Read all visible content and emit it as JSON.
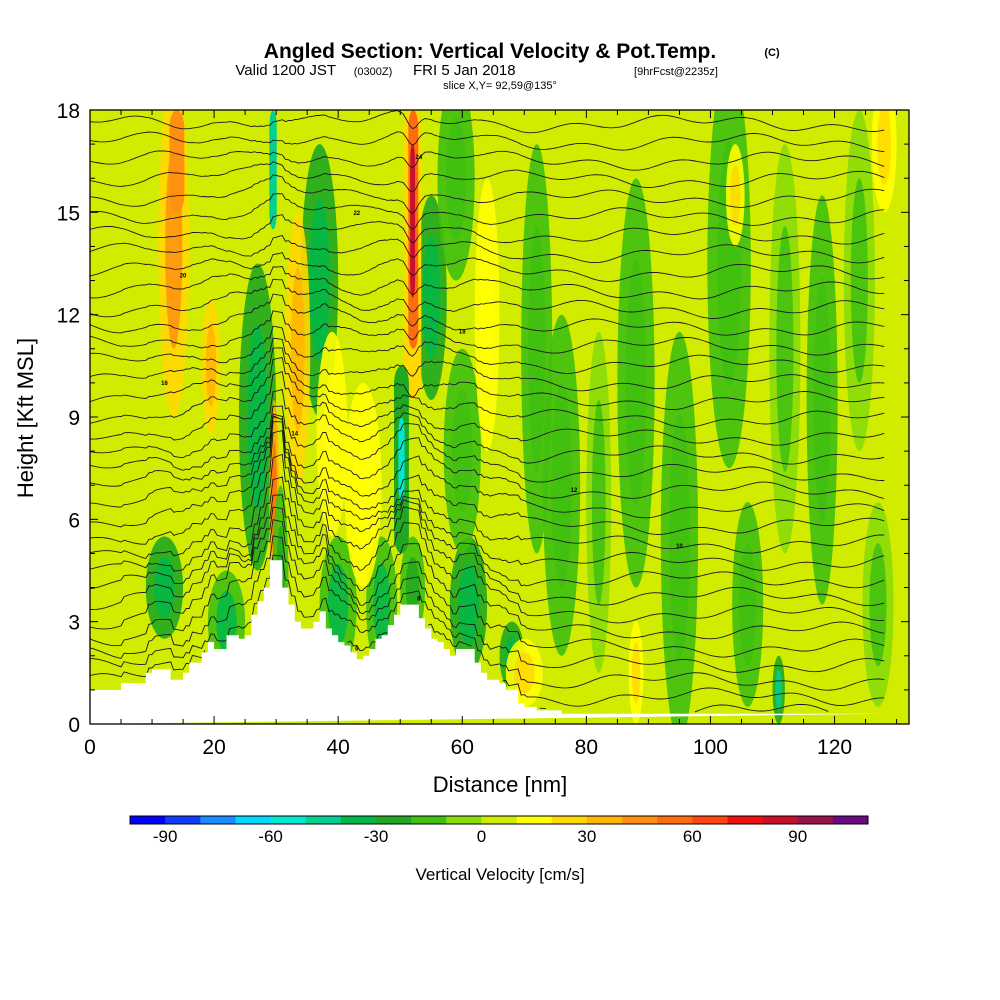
{
  "header": {
    "title": "Angled Section: Vertical Velocity & Pot.Temp.",
    "title_suffix": "(C)",
    "valid_prefix": "Valid 1200 JST",
    "valid_zulu": "(0300Z)",
    "valid_date": "FRI 5 Jan 2018",
    "forecast": "[9hrFcst@2235z]",
    "slice": "slice X,Y= 92,59@135°"
  },
  "chart_data": {
    "type": "heatmap",
    "title": "Angled Section: Vertical Velocity & Pot.Temp.",
    "xlabel": "Distance [nm]",
    "ylabel": "Height [Kft MSL]",
    "xlim": [
      0,
      132
    ],
    "ylim": [
      0,
      18
    ],
    "x_ticks": [
      0,
      20,
      40,
      60,
      80,
      100,
      120
    ],
    "y_ticks": [
      0,
      3,
      6,
      9,
      12,
      15,
      18
    ],
    "terrain": {
      "name": "terrain profile",
      "x": [
        0,
        4,
        4,
        5,
        5,
        6,
        6,
        7,
        7,
        8,
        8,
        9,
        9,
        10,
        10,
        13,
        13,
        15,
        15,
        16,
        16,
        18,
        18,
        19,
        19,
        20,
        20,
        22,
        22,
        24,
        24,
        25,
        25,
        26,
        26,
        27,
        27,
        28,
        28,
        29,
        29,
        31,
        31,
        32,
        32,
        33,
        33,
        34,
        34,
        35,
        35,
        36,
        36,
        37,
        37,
        38,
        38,
        39,
        39,
        40,
        40,
        41,
        41,
        42,
        42,
        43,
        43,
        44,
        44,
        45,
        45,
        46,
        46,
        47,
        47,
        48,
        48,
        49,
        49,
        50,
        50,
        53,
        53,
        54,
        54,
        55,
        55,
        56,
        56,
        57,
        57,
        58,
        58,
        59,
        59,
        60,
        60,
        62,
        62,
        63,
        63,
        64,
        64,
        65,
        65,
        66,
        66,
        67,
        67,
        68,
        68,
        69,
        69,
        70,
        70,
        72,
        72,
        76,
        76,
        80,
        80,
        84,
        84,
        88,
        88,
        92,
        92,
        96,
        96,
        100,
        100,
        104,
        104,
        108,
        108,
        112,
        112,
        116,
        116,
        120,
        120,
        124,
        124,
        128,
        128,
        132
      ],
      "height": [
        1.0,
        1.0,
        1.0,
        1.0,
        1.2,
        1.2,
        1.2,
        1.2,
        1.2,
        1.2,
        1.2,
        1.2,
        1.5,
        1.5,
        1.6,
        1.6,
        1.3,
        1.3,
        1.5,
        1.5,
        1.8,
        1.8,
        2.1,
        2.1,
        2.4,
        2.4,
        2.2,
        2.2,
        2.6,
        2.6,
        2.5,
        2.5,
        2.6,
        2.6,
        3.2,
        3.2,
        3.6,
        3.6,
        4.0,
        4.0,
        4.8,
        4.8,
        4.0,
        4.0,
        3.5,
        3.5,
        3.0,
        3.0,
        2.8,
        2.8,
        2.8,
        2.8,
        3.0,
        3.0,
        3.3,
        3.3,
        2.8,
        2.8,
        2.6,
        2.6,
        2.4,
        2.4,
        2.3,
        2.3,
        2.1,
        2.1,
        1.9,
        1.9,
        2.0,
        2.0,
        2.2,
        2.2,
        2.5,
        2.5,
        2.6,
        2.6,
        2.9,
        2.9,
        3.2,
        3.2,
        3.5,
        3.5,
        3.1,
        3.1,
        2.8,
        2.8,
        2.5,
        2.5,
        2.4,
        2.4,
        2.2,
        2.2,
        2.0,
        2.0,
        2.2,
        2.2,
        2.2,
        2.2,
        1.8,
        1.8,
        1.5,
        1.5,
        1.3,
        1.3,
        1.3,
        1.3,
        1.2,
        1.2,
        1.0,
        1.0,
        1.0,
        1.0,
        0.6,
        0.6,
        0.5,
        0.5,
        0.4,
        0.4,
        0.3,
        0.3,
        0.3,
        0.3,
        0.3,
        0.3,
        0.3,
        0.3,
        0.3,
        0.3,
        0.3,
        0.3,
        0.3,
        0.3,
        0.3,
        0.3,
        0.3,
        0.3,
        0.3,
        0.3,
        0.3,
        0.3,
        0.3,
        0.3,
        0.3,
        0.3
      ]
    },
    "velocity_features": [
      {
        "x": 13.5,
        "z": 14.0,
        "dx": 2.5,
        "dz": 5,
        "w": 25
      },
      {
        "x": 12,
        "z": 4.0,
        "dx": 3.0,
        "dz": 1.5,
        "w": -22
      },
      {
        "x": 19.5,
        "z": 10.5,
        "dx": 1.5,
        "dz": 2,
        "w": 20
      },
      {
        "x": 22,
        "z": 3.0,
        "dx": 3.0,
        "dz": 1.5,
        "w": -20
      },
      {
        "x": 27,
        "z": 9.0,
        "dx": 3.0,
        "dz": 4.5,
        "w": -25
      },
      {
        "x": 29.7,
        "z": 6.5,
        "dx": 0.8,
        "dz": 3,
        "w": 35
      },
      {
        "x": 30.7,
        "z": 4.0,
        "dx": 1.3,
        "dz": 3,
        "w": -15
      },
      {
        "x": 37,
        "z": 13.0,
        "dx": 3.0,
        "dz": 4,
        "w": -25
      },
      {
        "x": 33.5,
        "z": 11.0,
        "dx": 2.0,
        "dz": 4,
        "w": 20
      },
      {
        "x": 39,
        "z": 8.5,
        "dx": 2.5,
        "dz": 3,
        "w": 12
      },
      {
        "x": 40,
        "z": 3.5,
        "dx": 3.0,
        "dz": 2,
        "w": -20
      },
      {
        "x": 47,
        "z": 3.5,
        "dx": 2.5,
        "dz": 2,
        "w": -20
      },
      {
        "x": 44,
        "z": 7.0,
        "dx": 3.0,
        "dz": 3,
        "w": 12
      },
      {
        "x": 55,
        "z": 12.5,
        "dx": 2.5,
        "dz": 3,
        "w": -25
      },
      {
        "x": 52,
        "z": 4.0,
        "dx": 2.0,
        "dz": 1.5,
        "w": -15
      },
      {
        "x": 61,
        "z": 3.5,
        "dx": 3.0,
        "dz": 2,
        "w": -25
      },
      {
        "x": 59,
        "z": 16.0,
        "dx": 3.0,
        "dz": 3,
        "w": -12
      },
      {
        "x": 60,
        "z": 8.0,
        "dx": 3.0,
        "dz": 3,
        "w": -12
      },
      {
        "x": 64,
        "z": 12.0,
        "dx": 2.0,
        "dz": 4,
        "w": 10
      },
      {
        "x": 68,
        "z": 2.0,
        "dx": 2.0,
        "dz": 1,
        "w": -25
      },
      {
        "x": 72,
        "z": 11.0,
        "dx": 2.5,
        "dz": 6,
        "w": -12
      },
      {
        "x": 76,
        "z": 7.0,
        "dx": 3.0,
        "dz": 5,
        "w": -12
      },
      {
        "x": 82,
        "z": 6.5,
        "dx": 2.0,
        "dz": 5,
        "w": -10
      },
      {
        "x": 88,
        "z": 10.0,
        "dx": 3.0,
        "dz": 6,
        "w": -12
      },
      {
        "x": 95,
        "z": 5.5,
        "dx": 3.0,
        "dz": 6,
        "w": -12
      },
      {
        "x": 103,
        "z": 13.5,
        "dx": 3.5,
        "dz": 6,
        "w": -12
      },
      {
        "x": 106,
        "z": 3.5,
        "dx": 2.5,
        "dz": 3,
        "w": -12
      },
      {
        "x": 112,
        "z": 11.0,
        "dx": 2.5,
        "dz": 6,
        "w": -10
      },
      {
        "x": 118,
        "z": 9.5,
        "dx": 2.5,
        "dz": 6,
        "w": -12
      },
      {
        "x": 124,
        "z": 13.0,
        "dx": 2.5,
        "dz": 5,
        "w": -10
      },
      {
        "x": 127,
        "z": 3.5,
        "dx": 2.5,
        "dz": 3,
        "w": -10
      },
      {
        "x": 70,
        "z": 1.5,
        "dx": 3.0,
        "dz": 1,
        "w": 15
      },
      {
        "x": 88,
        "z": 1.5,
        "dx": 1.2,
        "dz": 1.5,
        "w": 18
      },
      {
        "x": 104,
        "z": 15.5,
        "dx": 1.5,
        "dz": 1.5,
        "w": 18
      },
      {
        "x": 128,
        "z": 17.0,
        "dx": 2.0,
        "dz": 2,
        "w": 15
      },
      {
        "x": 111,
        "z": 1.0,
        "dx": 1.0,
        "dz": 1,
        "w": -30
      }
    ],
    "isentropes": {
      "name": "Pot.Temp. (C)",
      "n": 34,
      "base": 0.35,
      "top": 17.6,
      "labeled_values": [
        "4",
        "6",
        "8",
        "10",
        "12",
        "14",
        "16",
        "18",
        "20",
        "22",
        "24",
        "26",
        "28",
        "30"
      ]
    },
    "colorbar": {
      "label": "Vertical Velocity [cm/s]",
      "tick_values": [
        -90,
        -60,
        -30,
        0,
        30,
        60,
        90
      ],
      "tick_labels": [
        "-90",
        "-60",
        "-30",
        "0",
        "30",
        "60",
        "90"
      ],
      "bins": [
        -100,
        -90,
        -80,
        -70,
        -60,
        -50,
        -40,
        -30,
        -20,
        -10,
        0,
        10,
        20,
        30,
        40,
        50,
        60,
        70,
        80,
        90,
        100,
        110
      ],
      "colors": [
        "#0000ff",
        "#0d3cff",
        "#1a8cff",
        "#00d8ff",
        "#00e8d0",
        "#00d090",
        "#00b848",
        "#20a820",
        "#40c010",
        "#88dc08",
        "#ccec00",
        "#ffff00",
        "#ffd800",
        "#ffb400",
        "#ff9010",
        "#ff6c10",
        "#ff4810",
        "#f01010",
        "#c8102a",
        "#98104c",
        "#6a0a82"
      ]
    }
  }
}
